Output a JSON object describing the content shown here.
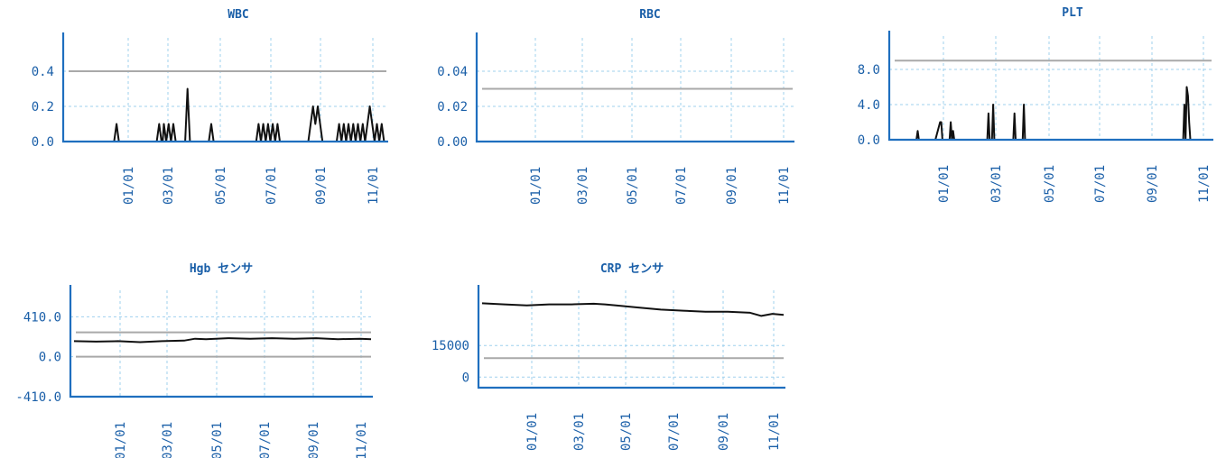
{
  "chart_data": [
    {
      "type": "line",
      "title": "WBC",
      "xticks": [
        "01/01",
        "03/01",
        "05/01",
        "07/01",
        "09/01",
        "11/01"
      ],
      "yticks": [
        "0.0",
        "0.2",
        "0.4"
      ],
      "ylim": [
        0,
        0.6
      ],
      "reference_lines": [
        0.4
      ],
      "grid": true,
      "series": [
        {
          "x": [
            0,
            0.2,
            0.21,
            0.22,
            0.38,
            0.39,
            0.4,
            0.405,
            0.41,
            0.42,
            0.43,
            0.44,
            0.45,
            0.46,
            0.47,
            0.5,
            0.51,
            0.52,
            0.6,
            0.61,
            0.62,
            0.75,
            0.8,
            0.81,
            0.82,
            0.83,
            0.84,
            0.85,
            0.86,
            0.87,
            0.88,
            0.89,
            0.9,
            1.0,
            1.02,
            1.03,
            1.04,
            1.05,
            1.06,
            1.07,
            1.08,
            1.09,
            1.1,
            1.11,
            1.12,
            1.13,
            1.14,
            1.15,
            1.16,
            1.17,
            1.18,
            1.19,
            1.2,
            1.21,
            1.22,
            1.23,
            1.24,
            1.25,
            1.26,
            1.27,
            1.28,
            1.29,
            1.3,
            1.31,
            1.32,
            1.33,
            1.34,
            1.35
          ],
          "y": [
            0,
            0,
            0.1,
            0,
            0,
            0.1,
            0,
            0,
            0.1,
            0,
            0.1,
            0,
            0.1,
            0,
            0,
            0,
            0.3,
            0,
            0,
            0.1,
            0,
            0,
            0,
            0.1,
            0,
            0.1,
            0,
            0.1,
            0,
            0.1,
            0,
            0.1,
            0,
            0,
            0,
            0.1,
            0.2,
            0.1,
            0.2,
            0.1,
            0,
            0,
            0,
            0,
            0,
            0,
            0,
            0.1,
            0,
            0.1,
            0,
            0.1,
            0,
            0.1,
            0,
            0.1,
            0,
            0.1,
            0,
            0.1,
            0.2,
            0.1,
            0,
            0.1,
            0,
            0.1,
            0,
            0
          ]
        }
      ]
    },
    {
      "type": "line",
      "title": "RBC",
      "xticks": [
        "01/01",
        "03/01",
        "05/01",
        "07/01",
        "09/01",
        "11/01"
      ],
      "yticks": [
        "0.00",
        "0.02",
        "0.04"
      ],
      "ylim": [
        0,
        0.06
      ],
      "reference_lines": [
        0.03
      ],
      "grid": true,
      "series": [
        {
          "x": [
            0,
            1.35
          ],
          "y": [
            0,
            0
          ]
        }
      ]
    },
    {
      "type": "line",
      "title": "PLT",
      "xticks": [
        "01/01",
        "03/01",
        "05/01",
        "07/01",
        "09/01",
        "11/01"
      ],
      "yticks": [
        "0.0",
        "4.0",
        "8.0"
      ],
      "ylim": [
        0,
        12
      ],
      "reference_lines": [
        9
      ],
      "grid": true,
      "series": [
        {
          "x": [
            0,
            0.1,
            0.105,
            0.11,
            0.18,
            0.2,
            0.205,
            0.21,
            0.24,
            0.245,
            0.25,
            0.255,
            0.26,
            0.27,
            0.4,
            0.405,
            0.41,
            0.42,
            0.425,
            0.43,
            0.51,
            0.515,
            0.52,
            0.55,
            0.555,
            0.56,
            1.23,
            1.235,
            1.24,
            1.245,
            1.25,
            1.255,
            1.26,
            1.35
          ],
          "y": [
            0,
            0,
            1,
            0,
            0,
            2,
            2,
            0,
            0,
            2,
            0,
            1,
            0,
            0,
            0,
            3,
            0,
            0,
            4,
            0,
            0,
            3,
            0,
            0,
            4,
            0,
            0,
            4,
            0,
            6,
            5,
            2,
            0,
            0
          ]
        }
      ]
    },
    {
      "type": "line",
      "title": "Hgb センサ",
      "xticks": [
        "01/01",
        "03/01",
        "05/01",
        "07/01",
        "09/01",
        "11/01"
      ],
      "yticks": [
        "-410.0",
        "0.0",
        "410.0"
      ],
      "ylim": [
        -410,
        700
      ],
      "reference_lines": [
        0,
        250
      ],
      "grid": true,
      "series": [
        {
          "x": [
            0,
            0.1,
            0.2,
            0.3,
            0.4,
            0.5,
            0.55,
            0.6,
            0.7,
            0.8,
            0.9,
            1.0,
            1.1,
            1.2,
            1.3,
            1.35
          ],
          "y": [
            160,
            155,
            160,
            150,
            160,
            165,
            185,
            180,
            190,
            185,
            190,
            185,
            190,
            180,
            185,
            180
          ]
        }
      ]
    },
    {
      "type": "line",
      "title": "CRP センサ",
      "xticks": [
        "01/01",
        "03/01",
        "05/01",
        "07/01",
        "09/01",
        "11/01"
      ],
      "yticks": [
        "0",
        "15000"
      ],
      "ylim": [
        -5000,
        42000
      ],
      "reference_lines": [
        9000
      ],
      "grid": true,
      "series": [
        {
          "x": [
            0,
            0.1,
            0.2,
            0.3,
            0.4,
            0.5,
            0.55,
            0.6,
            0.7,
            0.8,
            0.9,
            1.0,
            1.1,
            1.2,
            1.25,
            1.3,
            1.35
          ],
          "y": [
            35000,
            34500,
            34000,
            34500,
            34500,
            34800,
            34500,
            34000,
            33000,
            32000,
            31500,
            31000,
            31000,
            30500,
            29000,
            30000,
            29500
          ]
        }
      ]
    }
  ]
}
